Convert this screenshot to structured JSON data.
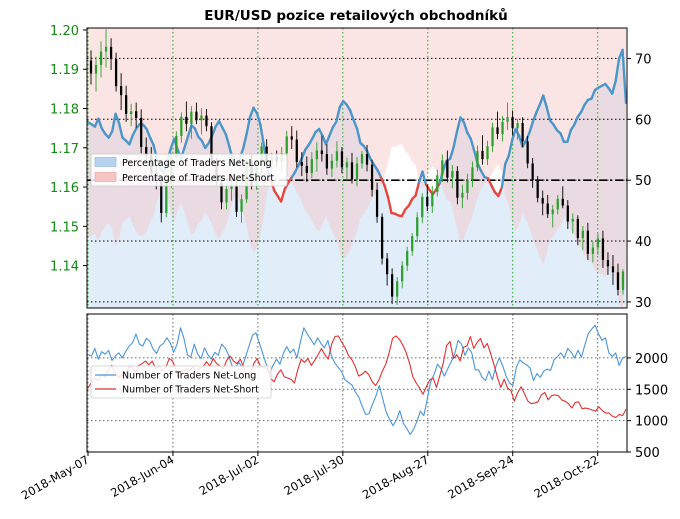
{
  "chart_data": [
    {
      "type": "candlestick-with-area",
      "title": "EUR/USD pozice retailových obchodníků",
      "left_axis": {
        "ticks": [
          "1.14",
          "1.15",
          "1.16",
          "1.17",
          "1.18",
          "1.19",
          "1.20"
        ],
        "ylim": [
          1.1292,
          1.2005
        ],
        "color": "#138a13"
      },
      "right_axis": {
        "ticks": [
          "30",
          "40",
          "50",
          "60",
          "70"
        ],
        "ylim": [
          29,
          75
        ]
      },
      "x_ticks": [
        "2018-May-07",
        "2018-Jun-04",
        "2018-Jul-02",
        "2018-Jul-30",
        "2018-Aug-27",
        "2018-Sep-24",
        "2018-Oct-22"
      ],
      "legend": {
        "position": "middle-left",
        "entries": [
          {
            "label": "Percentage of Traders Net-Long",
            "color": "#b7d3f0"
          },
          {
            "label": "Percentage of Traders Net-Short",
            "color": "#f7c4c4"
          }
        ]
      },
      "reference_line": {
        "y": 50,
        "style": "dash-dot"
      },
      "net_long_pct_line_color": "#4a96c9",
      "net_short_pct_line_color": "#e8463c",
      "candle_up_color": "#2ca02c",
      "candle_down_color": "#000000",
      "net_long_pct": [
        59.5,
        59.2,
        58.8,
        60.1,
        58.5,
        57.6,
        57.0,
        58.0,
        60.9,
        59.4,
        57.0,
        56.5,
        55.9,
        57.4,
        58.5,
        59.2,
        59.1,
        58.4,
        57.0,
        55.8,
        53.5,
        52.0,
        51.2,
        53.0,
        55.2,
        56.8,
        55.0,
        53.6,
        55.4,
        57.2,
        59.0,
        58.5,
        57.1,
        56.5,
        55.3,
        56.1,
        57.3,
        58.8,
        59.7,
        58.6,
        57.5,
        55.5,
        53.3,
        52.5,
        53.6,
        55.2,
        57.6,
        60.4,
        61.9,
        61.0,
        59.1,
        55.7,
        51.8,
        50.1,
        48.3,
        47.4,
        46.5,
        48.5,
        49.5,
        50.4,
        51.3,
        52.4,
        53.6,
        55.0,
        55.8,
        56.8,
        57.9,
        58.4,
        57.3,
        55.9,
        57.3,
        58.7,
        59.6,
        62.0,
        63.0,
        62.4,
        61.5,
        59.9,
        58.5,
        56.1,
        55.6,
        54.7,
        53.4,
        52.5,
        51.6,
        50.4,
        49.1,
        47.2,
        44.6,
        44.5,
        44.2,
        44.1,
        45.2,
        45.8,
        46.9,
        47.5,
        49.7,
        51.4,
        49.3,
        48.4,
        47.7,
        48.5,
        49.5,
        51.7,
        53.2,
        53.5,
        55.4,
        58.0,
        60.3,
        59.5,
        57.8,
        56.8,
        54.8,
        52.7,
        51.5,
        50.5,
        50.3,
        49.1,
        48.0,
        47.4,
        48.8,
        52.7,
        54.0,
        56.6,
        58.4,
        57.3,
        55.5,
        56.5,
        57.8,
        59.6,
        61.1,
        62.4,
        63.9,
        62.0,
        59.8,
        59.1,
        58.2,
        57.7,
        56.3,
        56.3,
        58.2,
        59.1,
        60.4,
        61.2,
        62.4,
        63.2,
        63.4,
        64.8,
        65.2,
        65.5,
        65.8,
        65.1,
        64.2,
        66.3,
        70.0,
        71.4,
        62.7
      ],
      "candles": [
        [
          1.1922,
          1.1948,
          1.1861,
          1.1889
        ],
        [
          1.1889,
          1.1932,
          1.1843,
          1.1911
        ],
        [
          1.1911,
          1.1971,
          1.1879,
          1.1945
        ],
        [
          1.1945,
          1.2002,
          1.1904,
          1.1957
        ],
        [
          1.1957,
          1.1979,
          1.1898,
          1.1926
        ],
        [
          1.1926,
          1.1942,
          1.1843,
          1.1857
        ],
        [
          1.1857,
          1.189,
          1.1796,
          1.1834
        ],
        [
          1.1834,
          1.1858,
          1.1766,
          1.1786
        ],
        [
          1.1786,
          1.1812,
          1.1755,
          1.1793
        ],
        [
          1.1793,
          1.1815,
          1.1751,
          1.1776
        ],
        [
          1.1776,
          1.1798,
          1.1686,
          1.1702
        ],
        [
          1.1702,
          1.1726,
          1.1662,
          1.1681
        ],
        [
          1.1681,
          1.1702,
          1.1628,
          1.1636
        ],
        [
          1.1636,
          1.1658,
          1.1594,
          1.1616
        ],
        [
          1.1616,
          1.1628,
          1.151,
          1.1534
        ],
        [
          1.1534,
          1.162,
          1.1523,
          1.1608
        ],
        [
          1.1608,
          1.1687,
          1.1597,
          1.1675
        ],
        [
          1.1675,
          1.1742,
          1.1658,
          1.173
        ],
        [
          1.173,
          1.179,
          1.1713,
          1.1779
        ],
        [
          1.1779,
          1.1818,
          1.1742,
          1.1761
        ],
        [
          1.1761,
          1.1806,
          1.1723,
          1.1792
        ],
        [
          1.1792,
          1.1815,
          1.176,
          1.177
        ],
        [
          1.177,
          1.1801,
          1.1734,
          1.1782
        ],
        [
          1.1782,
          1.1799,
          1.1742,
          1.1755
        ],
        [
          1.1755,
          1.1765,
          1.1652,
          1.1667
        ],
        [
          1.1667,
          1.1674,
          1.1605,
          1.1612
        ],
        [
          1.1612,
          1.1627,
          1.1543,
          1.1561
        ],
        [
          1.1561,
          1.1608,
          1.1543,
          1.1595
        ],
        [
          1.1595,
          1.1633,
          1.1565,
          1.1601
        ],
        [
          1.1601,
          1.1614,
          1.1524,
          1.1537
        ],
        [
          1.1537,
          1.1581,
          1.1509,
          1.1569
        ],
        [
          1.1569,
          1.1673,
          1.1559,
          1.1667
        ],
        [
          1.1667,
          1.1684,
          1.1594,
          1.1603
        ],
        [
          1.1603,
          1.1667,
          1.1593,
          1.1653
        ],
        [
          1.1653,
          1.1713,
          1.1616,
          1.1703
        ],
        [
          1.1703,
          1.1722,
          1.1648,
          1.1658
        ],
        [
          1.1658,
          1.1687,
          1.1637,
          1.1677
        ],
        [
          1.1677,
          1.1693,
          1.1651,
          1.1666
        ],
        [
          1.1666,
          1.1702,
          1.1636,
          1.1686
        ],
        [
          1.1686,
          1.1743,
          1.1678,
          1.1729
        ],
        [
          1.1729,
          1.1755,
          1.1697,
          1.1721
        ],
        [
          1.1721,
          1.1744,
          1.165,
          1.1664
        ],
        [
          1.1664,
          1.1689,
          1.1628,
          1.1654
        ],
        [
          1.1654,
          1.1678,
          1.1613,
          1.1636
        ],
        [
          1.1636,
          1.1689,
          1.1622,
          1.1671
        ],
        [
          1.1671,
          1.1714,
          1.1639,
          1.1693
        ],
        [
          1.1693,
          1.1731,
          1.1665,
          1.1684
        ],
        [
          1.1684,
          1.1709,
          1.1631,
          1.1647
        ],
        [
          1.1647,
          1.1684,
          1.1625,
          1.1667
        ],
        [
          1.1667,
          1.1717,
          1.165,
          1.1691
        ],
        [
          1.1691,
          1.1702,
          1.1635,
          1.165
        ],
        [
          1.165,
          1.1675,
          1.1617,
          1.1663
        ],
        [
          1.1663,
          1.1687,
          1.1609,
          1.1619
        ],
        [
          1.1619,
          1.1677,
          1.1602,
          1.166
        ],
        [
          1.166,
          1.1692,
          1.1647,
          1.1684
        ],
        [
          1.1684,
          1.1707,
          1.164,
          1.1657
        ],
        [
          1.1657,
          1.167,
          1.1576,
          1.1593
        ],
        [
          1.1593,
          1.1611,
          1.1509,
          1.1524
        ],
        [
          1.1524,
          1.1533,
          1.1403,
          1.1418
        ],
        [
          1.1418,
          1.1432,
          1.1349,
          1.1378
        ],
        [
          1.1378,
          1.1393,
          1.1302,
          1.1321
        ],
        [
          1.1321,
          1.1371,
          1.13,
          1.136
        ],
        [
          1.136,
          1.1411,
          1.1342,
          1.14
        ],
        [
          1.14,
          1.1448,
          1.1386,
          1.1437
        ],
        [
          1.1437,
          1.1483,
          1.1425,
          1.1475
        ],
        [
          1.1475,
          1.1536,
          1.146,
          1.1523
        ],
        [
          1.1523,
          1.1584,
          1.1508,
          1.1575
        ],
        [
          1.1575,
          1.1606,
          1.1539,
          1.1551
        ],
        [
          1.1551,
          1.1603,
          1.1534,
          1.1588
        ],
        [
          1.1588,
          1.1644,
          1.1576,
          1.163
        ],
        [
          1.163,
          1.1683,
          1.1613,
          1.1668
        ],
        [
          1.1668,
          1.1693,
          1.1612,
          1.1624
        ],
        [
          1.1624,
          1.1656,
          1.1597,
          1.1641
        ],
        [
          1.1641,
          1.1653,
          1.1556,
          1.1573
        ],
        [
          1.1573,
          1.1606,
          1.1546,
          1.1585
        ],
        [
          1.1585,
          1.1634,
          1.1568,
          1.1619
        ],
        [
          1.1619,
          1.1665,
          1.16,
          1.165
        ],
        [
          1.165,
          1.1706,
          1.164,
          1.1692
        ],
        [
          1.1692,
          1.1732,
          1.1657,
          1.1671
        ],
        [
          1.1671,
          1.1718,
          1.1656,
          1.1704
        ],
        [
          1.1704,
          1.1764,
          1.1689,
          1.1752
        ],
        [
          1.1752,
          1.1792,
          1.1722,
          1.1735
        ],
        [
          1.1735,
          1.1781,
          1.1716,
          1.1766
        ],
        [
          1.1766,
          1.1815,
          1.1745,
          1.1778
        ],
        [
          1.1778,
          1.1795,
          1.1731,
          1.175
        ],
        [
          1.175,
          1.1774,
          1.1721,
          1.1763
        ],
        [
          1.1763,
          1.1778,
          1.1702,
          1.1716
        ],
        [
          1.1716,
          1.173,
          1.1648,
          1.166
        ],
        [
          1.166,
          1.1674,
          1.1598,
          1.1617
        ],
        [
          1.1617,
          1.1628,
          1.1561,
          1.1572
        ],
        [
          1.1572,
          1.1591,
          1.1528,
          1.1558
        ],
        [
          1.1558,
          1.158,
          1.1521,
          1.1531
        ],
        [
          1.1531,
          1.1554,
          1.1497,
          1.1543
        ],
        [
          1.1543,
          1.158,
          1.153,
          1.157
        ],
        [
          1.157,
          1.1602,
          1.1546,
          1.1553
        ],
        [
          1.1553,
          1.1567,
          1.1493,
          1.1512
        ],
        [
          1.1512,
          1.1533,
          1.1482,
          1.1519
        ],
        [
          1.1519,
          1.1528,
          1.1452,
          1.147
        ],
        [
          1.147,
          1.1501,
          1.144,
          1.1489
        ],
        [
          1.1489,
          1.1509,
          1.1414,
          1.143
        ],
        [
          1.143,
          1.1461,
          1.1408,
          1.1446
        ],
        [
          1.1446,
          1.1481,
          1.1427,
          1.1469
        ],
        [
          1.1469,
          1.1489,
          1.1394,
          1.1414
        ],
        [
          1.1414,
          1.1434,
          1.1376,
          1.1398
        ],
        [
          1.1398,
          1.1427,
          1.1351,
          1.1383
        ],
        [
          1.1383,
          1.1405,
          1.1324,
          1.1338
        ],
        [
          1.1338,
          1.1391,
          1.1326,
          1.1385
        ]
      ]
    },
    {
      "type": "line",
      "right_axis": {
        "ticks": [
          "500",
          "1000",
          "1500",
          "2000"
        ],
        "ylim": [
          500,
          2700
        ]
      },
      "legend": {
        "position": "middle-left",
        "entries": [
          {
            "label": "Number of Traders Net-Long",
            "color": "#4a96d8"
          },
          {
            "label": "Number of Traders Net-Short",
            "color": "#e03030"
          }
        ]
      },
      "series": [
        {
          "name": "Number of Traders Net-Long",
          "color": "#4a96d8",
          "values": [
            2050,
            2030,
            2150,
            1980,
            2100,
            2060,
            2120,
            1960,
            2030,
            2080,
            2000,
            2100,
            2190,
            2240,
            2380,
            2220,
            2190,
            2310,
            2270,
            2140,
            2070,
            2190,
            2230,
            2320,
            2240,
            2090,
            2220,
            2480,
            2310,
            2050,
            2010,
            2220,
            2060,
            1990,
            2160,
            2050,
            1980,
            2090,
            2040,
            2220,
            2160,
            2050,
            1880,
            1840,
            1930,
            1850,
            2020,
            2190,
            2360,
            2400,
            2240,
            2070,
            1900,
            1760,
            1880,
            1980,
            1900,
            2070,
            2180,
            2080,
            2140,
            2000,
            2260,
            2480,
            2380,
            2300,
            2210,
            2320,
            2230,
            2160,
            2280,
            2040,
            1920,
            1850,
            1780,
            1650,
            1610,
            1570,
            1460,
            1380,
            1230,
            1100,
            1110,
            1260,
            1390,
            1560,
            1350,
            1140,
            1020,
            920,
            1010,
            1160,
            960,
            880,
            780,
            860,
            990,
            1150,
            1080,
            1340,
            1620,
            1740,
            1900,
            1830,
            1710,
            1830,
            1940,
            2060,
            2280,
            2220,
            2040,
            2160,
            2080,
            1810,
            1810,
            1690,
            1640,
            1790,
            1650,
            1860,
            2000,
            1880,
            1710,
            1600,
            1560,
            1850,
            1970,
            1920,
            1890,
            1840,
            1640,
            1750,
            1690,
            1790,
            1820,
            1800,
            1970,
            2020,
            2080,
            2000,
            2150,
            2090,
            2000,
            2120,
            2010,
            2210,
            2390,
            2460,
            2520,
            2380,
            2280,
            2320,
            2080,
            2020,
            2080,
            1880,
            2000,
            2020
          ]
        },
        {
          "name": "Number of Traders Net-Short",
          "color": "#e03030",
          "values": [
            1520,
            1610,
            1680,
            1640,
            1730,
            1690,
            1810,
            1880,
            1760,
            1690,
            1720,
            1710,
            1850,
            1860,
            1760,
            1880,
            1910,
            1950,
            1890,
            1950,
            1830,
            1870,
            1800,
            1850,
            1990,
            1950,
            1810,
            1700,
            1750,
            1830,
            1790,
            1860,
            1760,
            1830,
            1860,
            1940,
            1870,
            1990,
            1910,
            1870,
            1830,
            1960,
            2030,
            1950,
            1910,
            1980,
            1850,
            1680,
            1740,
            1910,
            1990,
            1860,
            1850,
            1820,
            1670,
            1620,
            1740,
            1810,
            1700,
            1680,
            1660,
            1600,
            1810,
            1980,
            1930,
            1990,
            1880,
            1960,
            2050,
            2150,
            2050,
            1980,
            2220,
            2340,
            2350,
            2250,
            2160,
            2040,
            1970,
            1860,
            1710,
            1740,
            1790,
            1730,
            1620,
            1560,
            1650,
            1790,
            1900,
            2080,
            2310,
            2350,
            2300,
            2210,
            2090,
            1920,
            1700,
            1600,
            1520,
            1420,
            1540,
            1650,
            1680,
            1530,
            1720,
            1920,
            2200,
            2260,
            1990,
            2050,
            1950,
            2170,
            2190,
            2340,
            2150,
            2250,
            2310,
            2160,
            2230,
            2070,
            1890,
            1690,
            1530,
            1660,
            1520,
            1480,
            1310,
            1450,
            1540,
            1430,
            1310,
            1270,
            1280,
            1300,
            1410,
            1450,
            1330,
            1400,
            1410,
            1400,
            1330,
            1310,
            1270,
            1200,
            1290,
            1300,
            1190,
            1200,
            1190,
            1170,
            1150,
            1220,
            1160,
            1120,
            1120,
            1070,
            1050,
            1100,
            1080,
            1180
          ]
        }
      ]
    }
  ]
}
